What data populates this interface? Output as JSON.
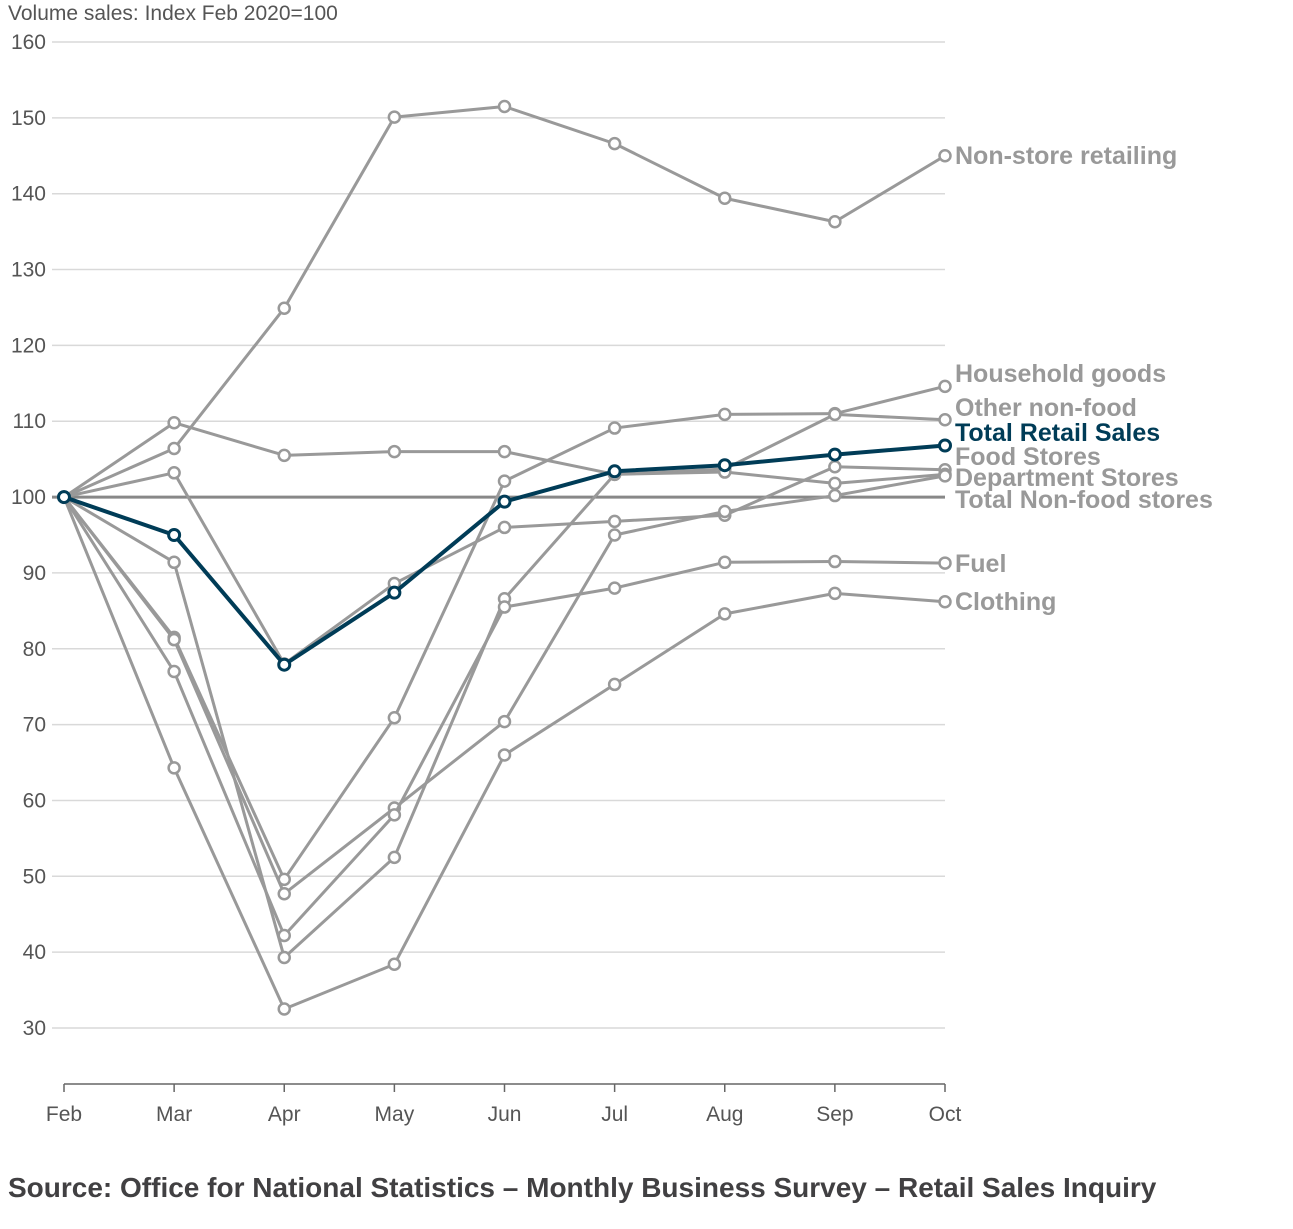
{
  "chart_data": {
    "type": "line",
    "ylabel": "Volume sales: Index Feb 2020=100",
    "x": [
      "Feb",
      "Mar",
      "Apr",
      "May",
      "Jun",
      "Jul",
      "Aug",
      "Sep",
      "Oct"
    ],
    "ylim": [
      30,
      160
    ],
    "yticks": [
      30,
      40,
      50,
      60,
      70,
      80,
      90,
      100,
      110,
      120,
      130,
      140,
      150,
      160
    ],
    "grid": true,
    "reference_line": 100,
    "highlight_color": "#003c57",
    "series_color": "#999999",
    "series": [
      {
        "name": "Non-store retailing",
        "values": [
          100,
          106.4,
          124.9,
          150.1,
          151.5,
          146.6,
          139.4,
          136.3,
          145.0
        ]
      },
      {
        "name": "Household goods",
        "values": [
          100,
          81.5,
          49.6,
          70.9,
          102.1,
          109.1,
          110.9,
          111.0,
          114.6
        ]
      },
      {
        "name": "Other non-food",
        "values": [
          100,
          109.8,
          105.5,
          106.0,
          106.0,
          103.0,
          103.7,
          110.9,
          110.2
        ]
      },
      {
        "name": "Total Retail Sales",
        "values": [
          100,
          95.0,
          77.9,
          87.4,
          99.4,
          103.4,
          104.2,
          105.6,
          106.8
        ]
      },
      {
        "name": "Food Stores",
        "values": [
          100,
          103.2,
          78.0,
          88.6,
          96.0,
          96.8,
          97.6,
          104.0,
          103.6
        ]
      },
      {
        "name": "Department Stores",
        "values": [
          100,
          91.4,
          39.3,
          52.5,
          86.6,
          103.0,
          103.3,
          101.8,
          103.0
        ]
      },
      {
        "name": "Total Non-food stores",
        "values": [
          100,
          81.2,
          47.7,
          59.0,
          70.4,
          95.0,
          98.1,
          100.2,
          102.8
        ]
      },
      {
        "name": "Fuel",
        "values": [
          100,
          77.0,
          42.2,
          58.1,
          85.5,
          88.0,
          91.4,
          91.5,
          91.3
        ]
      },
      {
        "name": "Clothing",
        "values": [
          100,
          64.3,
          32.5,
          38.4,
          66.0,
          75.3,
          84.6,
          87.3,
          86.2
        ]
      }
    ],
    "label_order": [
      "Non-store retailing",
      "Household goods",
      "Other non-food",
      "Total Retail Sales",
      "Food Stores",
      "Department Stores",
      "Total Non-food stores",
      "Fuel",
      "Clothing"
    ],
    "highlight_series": "Total Retail Sales"
  },
  "source": "Source: Office for National Statistics – Monthly Business Survey – Retail Sales Inquiry"
}
